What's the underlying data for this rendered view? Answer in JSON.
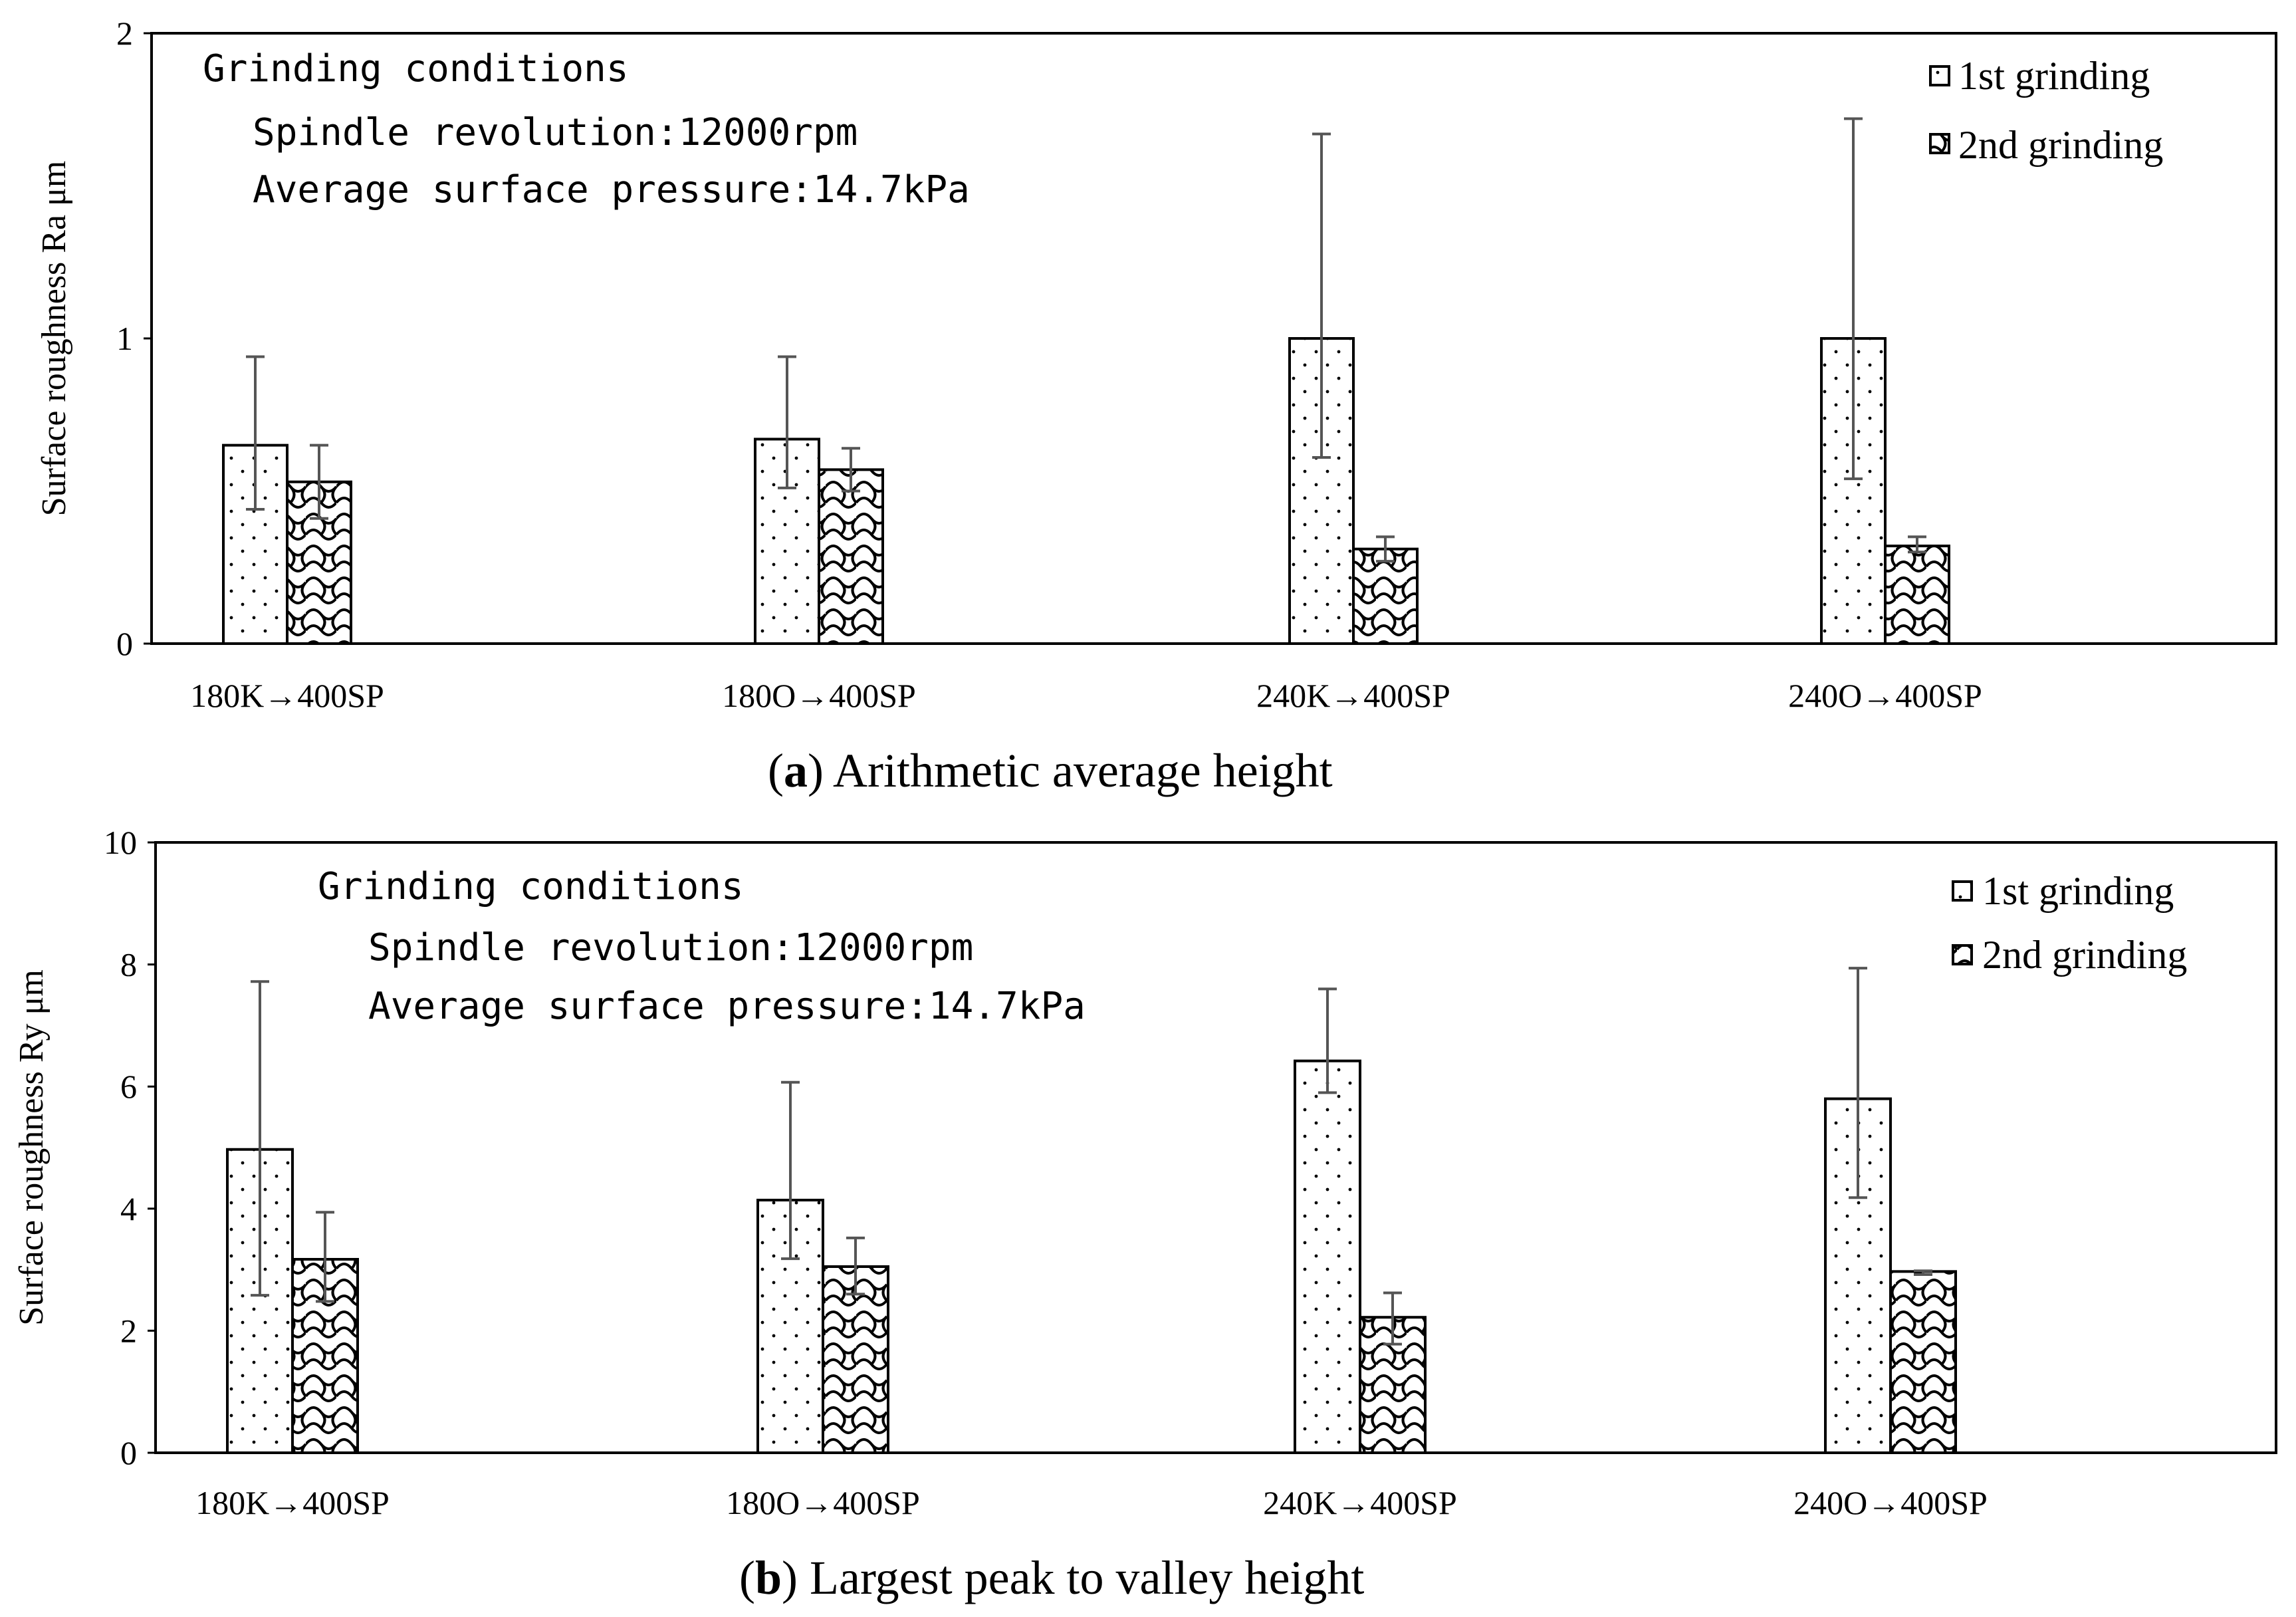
{
  "chart_data": [
    {
      "type": "bar",
      "panel": "a",
      "caption_label": "a",
      "caption_text": "Arithmetic average height",
      "ylabel": "Surface roughness Ra μm",
      "ylim": [
        0,
        2
      ],
      "yticks": [
        0,
        1,
        2
      ],
      "categories": [
        "180K→400SP",
        "180O→400SP",
        "240K→400SP",
        "240O→400SP"
      ],
      "series": [
        {
          "name": "1st grinding",
          "values": [
            0.65,
            0.67,
            1.0,
            1.0
          ],
          "err_low": [
            0.44,
            0.51,
            0.61,
            0.54
          ],
          "err_high": [
            0.94,
            0.94,
            1.67,
            1.72
          ]
        },
        {
          "name": "2nd grinding",
          "values": [
            0.53,
            0.57,
            0.31,
            0.32
          ],
          "err_low": [
            0.41,
            0.5,
            0.27,
            0.3
          ],
          "err_high": [
            0.65,
            0.64,
            0.35,
            0.35
          ]
        }
      ],
      "annotation": {
        "title": "Grinding conditions",
        "line1": "Spindle revolution:12000rpm",
        "line2": "Average surface pressure:14.7kPa"
      },
      "legend_position": "top-right"
    },
    {
      "type": "bar",
      "panel": "b",
      "caption_label": "b",
      "caption_text": "Largest peak to valley height",
      "ylabel": "Surface roughness Ry μm",
      "ylim": [
        0,
        10
      ],
      "yticks": [
        0,
        2,
        4,
        6,
        8,
        10
      ],
      "categories": [
        "180K→400SP",
        "180O→400SP",
        "240K→400SP",
        "240O→400SP"
      ],
      "series": [
        {
          "name": "1st grinding",
          "values": [
            4.97,
            4.14,
            6.42,
            5.8
          ],
          "err_low": [
            2.58,
            3.18,
            5.9,
            4.18
          ],
          "err_high": [
            7.72,
            6.07,
            7.6,
            7.94
          ]
        },
        {
          "name": "2nd grinding",
          "values": [
            3.17,
            3.05,
            2.22,
            2.97
          ],
          "err_low": [
            2.48,
            2.6,
            1.78,
            2.92
          ],
          "err_high": [
            3.94,
            3.52,
            2.62,
            2.98
          ]
        }
      ],
      "annotation": {
        "title": "Grinding conditions",
        "line1": "Spindle revolution:12000rpm",
        "line2": "Average surface pressure:14.7kPa"
      },
      "legend_position": "top-right"
    }
  ]
}
